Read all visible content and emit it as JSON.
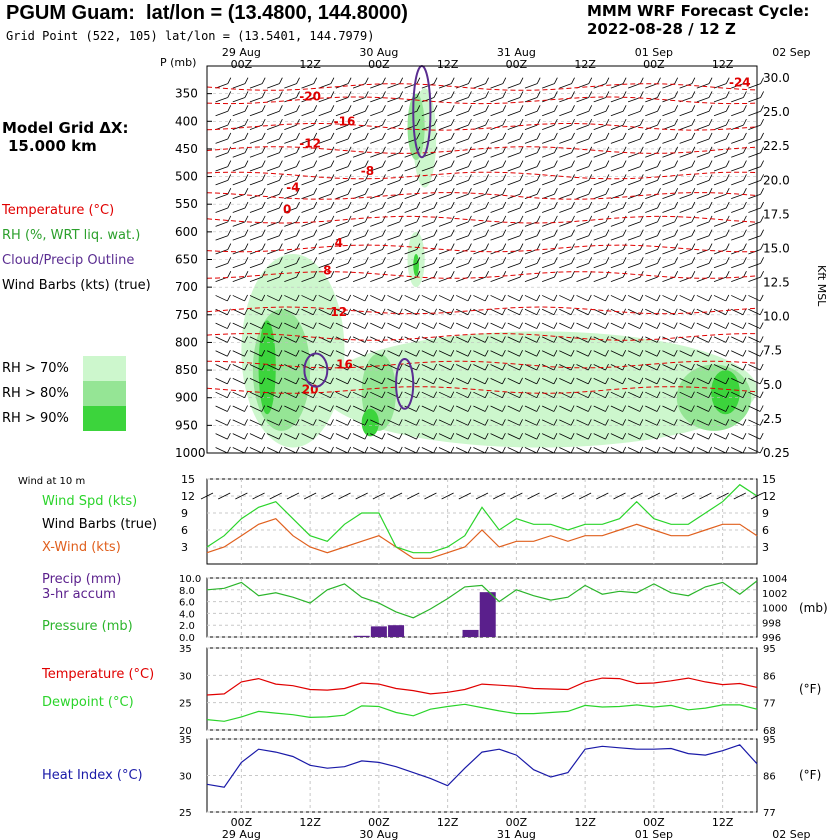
{
  "header": {
    "station": "PGUM Guam:",
    "latlon": "lat/lon = (13.4800, 144.8000)",
    "gridpoint": "Grid Point (522, 105) lat/lon = (13.5401, 144.7979)",
    "model": "MMM WRF Forecast Cycle:",
    "cycle": "2022-08-28 / 12  Z"
  },
  "sidebar": {
    "grid_title": "Model Grid ΔX:",
    "grid_value": "15.000 km",
    "legend_temp": "Temperature (°C)",
    "legend_rh": "RH (%, WRT liq. wat.)",
    "legend_cloud": "Cloud/Precip Outline",
    "legend_wind": "Wind Barbs (kts) (true)",
    "rh_levels": [
      {
        "label": "RH > 70%",
        "color": "#cdf7cd"
      },
      {
        "label": "RH > 80%",
        "color": "#95e595"
      },
      {
        "label": "RH > 90%",
        "color": "#3cd43c"
      }
    ]
  },
  "colors": {
    "temperature": "#e00000",
    "rh_text": "#2ca02c",
    "cloud": "#5a2d91",
    "wind_speed": "#2bd42b",
    "cross_wind": "#e0601e",
    "precip": "#5a1f8c",
    "pressure": "#2bb52b",
    "dewpoint": "#2bd42b",
    "heat_index": "#1a1aa8"
  },
  "time_axis": {
    "day_labels": [
      "29 Aug",
      "30 Aug",
      "31 Aug",
      "01 Sep",
      "02 Sep"
    ],
    "hour_labels": [
      "00Z",
      "12Z",
      "00Z",
      "12Z",
      "00Z",
      "12Z",
      "00Z",
      "12Z",
      "00Z",
      "12Z"
    ]
  },
  "chart_data": [
    {
      "type": "heatmap",
      "name_shown": "",
      "y_axis_title": "P (mb)",
      "y_ticks": [
        "350",
        "400",
        "450",
        "500",
        "550",
        "600",
        "650",
        "700",
        "750",
        "800",
        "850",
        "900",
        "950",
        "1000"
      ],
      "right_axis_title": "Kft MSL",
      "right_ticks": [
        "30.0",
        "25.0",
        "22.5",
        "20.0",
        "17.5",
        "15.0",
        "12.5",
        "10.0",
        "7.5",
        "5.0",
        "2.5",
        "0.25"
      ],
      "ylim": [
        1000,
        300
      ],
      "temperature_labels": [
        {
          "t": 18,
          "p": 355,
          "value": "-20"
        },
        {
          "t": 24,
          "p": 400,
          "value": "-16"
        },
        {
          "t": 18,
          "p": 440,
          "value": "-12"
        },
        {
          "t": 28,
          "p": 490,
          "value": "-8"
        },
        {
          "t": 15,
          "p": 520,
          "value": "-4"
        },
        {
          "t": 14,
          "p": 560,
          "value": "0"
        },
        {
          "t": 23,
          "p": 620,
          "value": "4"
        },
        {
          "t": 21,
          "p": 670,
          "value": "8"
        },
        {
          "t": 23,
          "p": 745,
          "value": "12"
        },
        {
          "t": 24,
          "p": 840,
          "value": "16"
        },
        {
          "t": 18,
          "p": 885,
          "value": "20"
        },
        {
          "t": 93,
          "p": 330,
          "value": "-24"
        }
      ],
      "temperature_isotherms_p": [
        338,
        362,
        410,
        452,
        498,
        535,
        578,
        630,
        678,
        742,
        790,
        840,
        886
      ],
      "rh_areas": [
        {
          "level": 70,
          "t0": 6,
          "t1": 24,
          "p0": 640,
          "p1": 990
        },
        {
          "level": 80,
          "t0": 8,
          "t1": 18,
          "p0": 740,
          "p1": 960
        },
        {
          "level": 90,
          "t0": 9,
          "t1": 12,
          "p0": 760,
          "p1": 930
        },
        {
          "level": 70,
          "t0": 20,
          "t1": 96,
          "p0": 780,
          "p1": 990
        },
        {
          "level": 80,
          "t0": 27,
          "t1": 33,
          "p0": 820,
          "p1": 960
        },
        {
          "level": 90,
          "t0": 27,
          "t1": 30,
          "p0": 920,
          "p1": 970
        },
        {
          "level": 80,
          "t0": 82,
          "t1": 95,
          "p0": 840,
          "p1": 960
        },
        {
          "level": 90,
          "t0": 88,
          "t1": 93,
          "p0": 850,
          "p1": 930
        },
        {
          "level": 70,
          "t0": 36,
          "t1": 40,
          "p0": 340,
          "p1": 520
        },
        {
          "level": 80,
          "t0": 35,
          "t1": 38,
          "p0": 350,
          "p1": 470
        },
        {
          "level": 70,
          "t0": 35,
          "t1": 38,
          "p0": 600,
          "p1": 700
        },
        {
          "level": 90,
          "t0": 36,
          "t1": 37,
          "p0": 640,
          "p1": 680
        }
      ],
      "cloud_outlines": [
        {
          "t0": 36,
          "t1": 39,
          "p0": 300,
          "p1": 465
        },
        {
          "t0": 17,
          "t1": 21,
          "p0": 820,
          "p1": 880
        },
        {
          "t0": 33,
          "t1": 36,
          "p0": 830,
          "p1": 920
        }
      ]
    },
    {
      "type": "line",
      "panel_label": "Wind at 10 m",
      "series_labels": [
        "Wind Spd (kts)",
        "Wind Barbs (true)",
        "X-Wind (kts)"
      ],
      "ylim": [
        0,
        15
      ],
      "y_ticks": [
        3,
        6,
        9,
        12,
        15
      ],
      "x_hours": [
        0,
        3,
        6,
        9,
        12,
        15,
        18,
        21,
        24,
        27,
        30,
        33,
        36,
        39,
        42,
        45,
        48,
        51,
        54,
        57,
        60,
        63,
        66,
        69,
        72,
        75,
        78,
        81,
        84,
        87,
        90,
        93,
        96
      ],
      "series": [
        {
          "values": [
            3,
            5,
            8,
            10,
            11,
            8,
            5,
            4,
            7,
            9,
            9,
            3,
            2,
            2,
            3,
            5,
            10,
            6,
            8,
            7,
            7,
            6,
            7,
            7,
            8,
            11,
            8,
            7,
            7,
            9,
            11,
            14,
            12
          ]
        },
        {
          "values": [
            2,
            3,
            5,
            7,
            8,
            5,
            3,
            2,
            3,
            4,
            5,
            3,
            1,
            1,
            2,
            3,
            6,
            3,
            4,
            4,
            5,
            4,
            5,
            5,
            6,
            7,
            6,
            5,
            5,
            6,
            7,
            7,
            5
          ]
        }
      ]
    },
    {
      "type": "bar",
      "series_labels": [
        "Precip (mm)",
        "3-hr accum",
        "Pressure (mb)"
      ],
      "ylim_left": [
        0,
        10
      ],
      "y_ticks_left": [
        "0.0",
        "2.0",
        "4.0",
        "6.0",
        "8.0",
        "10.0"
      ],
      "ylim_right": [
        996,
        1004
      ],
      "y_ticks_right": [
        "996",
        "998",
        "1000",
        "1002",
        "1004"
      ],
      "right_unit": "(mb)",
      "precip_bars": [
        {
          "t": 27,
          "value": 0.2
        },
        {
          "t": 30,
          "value": 1.8
        },
        {
          "t": 33,
          "value": 2.0
        },
        {
          "t": 46,
          "value": 1.2
        },
        {
          "t": 49,
          "value": 7.6
        }
      ],
      "x_hours": [
        0,
        3,
        6,
        9,
        12,
        15,
        18,
        21,
        24,
        27,
        30,
        33,
        36,
        39,
        42,
        45,
        48,
        51,
        54,
        57,
        60,
        63,
        66,
        69,
        72,
        75,
        78,
        81,
        84,
        87,
        90,
        93,
        96
      ],
      "pressure": [
        1002.4,
        1002.6,
        1003.4,
        1001.6,
        1002.0,
        1001.4,
        1000.6,
        1002.4,
        1003.2,
        1001.4,
        1000.6,
        999.4,
        998.6,
        999.8,
        1001.2,
        1002.8,
        1003.0,
        1000.8,
        1002.4,
        1001.6,
        1001.0,
        1001.4,
        1003.0,
        1001.8,
        1002.2,
        1002.0,
        1003.2,
        1002.0,
        1001.6,
        1002.8,
        1003.4,
        1001.8,
        1003.6
      ]
    },
    {
      "type": "line",
      "series_labels": [
        "Temperature (°C)",
        "Dewpoint (°C)"
      ],
      "ylim_left": [
        20,
        35
      ],
      "y_ticks_left": [
        20,
        25,
        30,
        35
      ],
      "y_ticks_right": [
        "68",
        "77",
        "86",
        "95"
      ],
      "right_unit": "(°F)",
      "x_hours": [
        0,
        3,
        6,
        9,
        12,
        15,
        18,
        21,
        24,
        27,
        30,
        33,
        36,
        39,
        42,
        45,
        48,
        51,
        54,
        57,
        60,
        63,
        66,
        69,
        72,
        75,
        78,
        81,
        84,
        87,
        90,
        93,
        96
      ],
      "series": [
        {
          "name": "Temperature",
          "values": [
            26.4,
            26.6,
            28.8,
            29.4,
            28.4,
            28.1,
            27.4,
            27.3,
            27.6,
            28.6,
            28.4,
            27.6,
            27.2,
            26.6,
            26.9,
            27.4,
            28.4,
            28.2,
            28.0,
            27.6,
            27.5,
            27.4,
            28.8,
            29.5,
            29.4,
            28.5,
            28.6,
            29.0,
            29.5,
            28.8,
            28.3,
            28.5,
            27.8
          ]
        },
        {
          "name": "Dewpoint",
          "values": [
            21.9,
            21.6,
            22.4,
            23.4,
            23.1,
            22.8,
            22.3,
            22.4,
            22.7,
            24.4,
            24.3,
            23.2,
            22.6,
            23.8,
            24.3,
            24.7,
            24.1,
            23.5,
            23.0,
            23.0,
            23.2,
            23.4,
            24.5,
            24.2,
            24.3,
            24.6,
            24.2,
            24.5,
            23.7,
            24.0,
            24.6,
            24.6,
            23.8
          ]
        }
      ]
    },
    {
      "type": "line",
      "series_labels": [
        "Heat Index (°C)"
      ],
      "ylim_left": [
        25,
        35
      ],
      "y_ticks_left": [
        25,
        30,
        35
      ],
      "y_ticks_right": [
        "77",
        "86",
        "95"
      ],
      "right_unit": "(°F)",
      "x_hours": [
        0,
        3,
        6,
        9,
        12,
        15,
        18,
        21,
        24,
        27,
        30,
        33,
        36,
        39,
        42,
        45,
        48,
        51,
        54,
        57,
        60,
        63,
        66,
        69,
        72,
        75,
        78,
        81,
        84,
        87,
        90,
        93,
        96
      ],
      "series": [
        {
          "name": "Heat Index",
          "values": [
            28.8,
            28.4,
            31.8,
            33.6,
            33.2,
            32.6,
            31.4,
            31.0,
            31.2,
            32.0,
            31.8,
            31.2,
            30.4,
            29.6,
            28.6,
            31.0,
            33.2,
            33.6,
            32.8,
            30.8,
            29.8,
            30.4,
            33.6,
            34.0,
            33.8,
            33.6,
            33.6,
            33.7,
            33.0,
            32.8,
            33.4,
            34.2,
            31.6
          ]
        }
      ]
    }
  ]
}
